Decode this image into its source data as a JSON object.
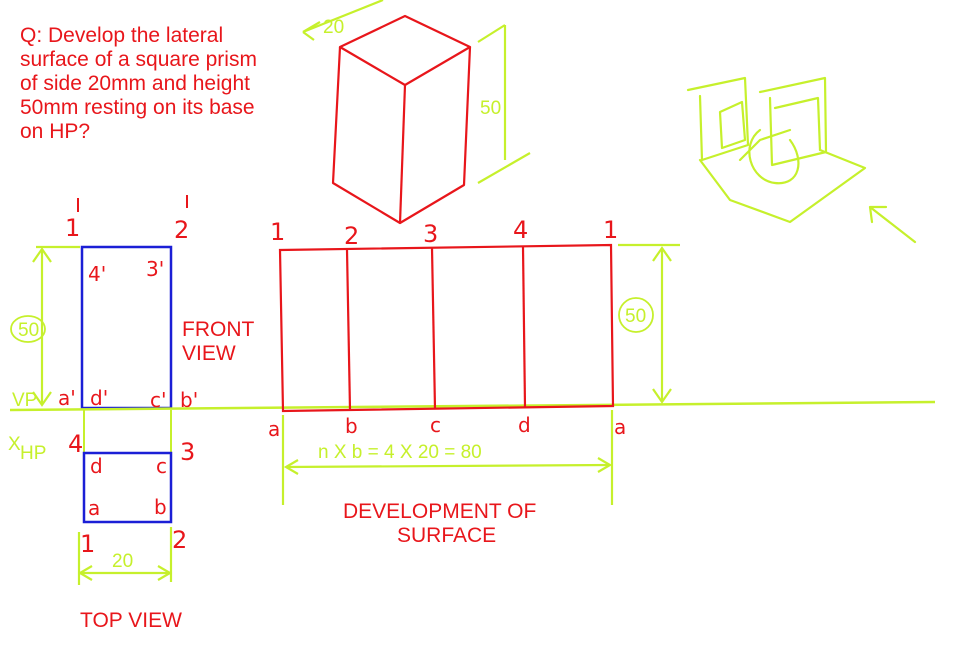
{
  "question": {
    "lines": [
      "Q: Develop the lateral",
      "surface of a square prism",
      "of side 20mm and height",
      "50mm resting on its base",
      "on HP?"
    ]
  },
  "colors": {
    "red": "#e8161b",
    "blue": "#1b1fd6",
    "green": "#c6f02c",
    "background": "#ffffff"
  },
  "pictorial": {
    "side_label": "20",
    "height_label": "50"
  },
  "front_view": {
    "title_lines": [
      "FRONT",
      "VIEW"
    ],
    "top_labels": [
      "1",
      "2"
    ],
    "inner_labels": [
      "4'",
      "3'"
    ],
    "height_label": "50",
    "base_labels": [
      "a'",
      "d'",
      "c'",
      "b'"
    ]
  },
  "reference_line": {
    "vp_label": "VP",
    "hp_label": "HP",
    "x_label": "X"
  },
  "top_view": {
    "title": "TOP VIEW",
    "corner_labels": [
      "4",
      "3",
      "1",
      "2"
    ],
    "inner_labels": [
      "d",
      "c",
      "a",
      "b"
    ],
    "width_label": "20"
  },
  "development": {
    "title_lines": [
      "DEVELOPMENT OF",
      "SURFACE"
    ],
    "top_labels": [
      "1",
      "2",
      "3",
      "4",
      "1"
    ],
    "bottom_labels": [
      "a",
      "b",
      "c",
      "d",
      "a"
    ],
    "height_label": "50",
    "length_formula": "n X b = 4 X 20 = 80"
  }
}
